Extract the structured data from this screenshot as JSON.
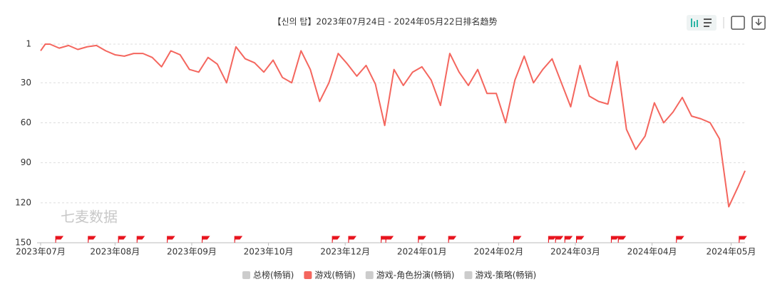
{
  "chart_data": {
    "type": "line",
    "title": "【신의 탑】2023年07月24日 - 2024年05月22日排名趋势",
    "watermark": "七麦数据",
    "x": [
      0,
      2,
      4,
      8,
      12,
      16,
      20,
      24,
      28,
      32,
      36,
      40,
      44,
      48,
      52,
      56,
      60,
      64,
      68,
      72,
      76,
      80,
      84,
      88,
      92,
      96,
      100,
      104,
      108,
      112,
      116,
      120,
      124,
      128,
      132,
      136,
      140,
      144,
      148,
      152,
      156,
      160,
      164,
      168,
      172,
      176,
      180,
      184,
      188,
      192,
      196,
      200,
      204,
      208,
      212,
      216,
      220,
      224,
      228,
      232,
      236,
      240,
      244,
      248,
      252,
      256,
      260,
      264,
      268,
      272,
      276,
      280,
      284,
      288,
      292,
      296,
      300,
      303
    ],
    "series": [
      {
        "name": "游戏(畅销)",
        "color": "#f4665e",
        "values": [
          6,
          1,
          1,
          4,
          2,
          5,
          3,
          2,
          6,
          9,
          10,
          8,
          8,
          11,
          18,
          6,
          9,
          20,
          22,
          11,
          16,
          30,
          3,
          12,
          15,
          22,
          13,
          26,
          30,
          6,
          20,
          44,
          30,
          8,
          16,
          25,
          17,
          31,
          62,
          20,
          32,
          22,
          18,
          28,
          47,
          8,
          22,
          32,
          20,
          38,
          38,
          60,
          28,
          10,
          30,
          20,
          12,
          30,
          48,
          17,
          40,
          44,
          46,
          14,
          65,
          80,
          70,
          45,
          60,
          52,
          41,
          55,
          57,
          60,
          72,
          123,
          108,
          96
        ]
      }
    ],
    "legend": [
      {
        "name": "总榜(畅销)",
        "color": "#ccc"
      },
      {
        "name": "游戏(畅销)",
        "color": "#f4665e"
      },
      {
        "name": "游戏-角色扮演(畅销)",
        "color": "#ccc"
      },
      {
        "name": "游戏-策略(畅销)",
        "color": "#ccc"
      }
    ],
    "events": [
      8,
      22,
      35,
      43,
      56,
      71,
      85,
      127,
      134,
      148,
      150,
      164,
      177,
      205,
      220,
      223,
      227,
      232,
      247,
      250,
      275,
      302
    ],
    "event_color": "#e8141e",
    "xlim": [
      0,
      303
    ],
    "xticks": [
      {
        "value": 0,
        "label": "2023年07月"
      },
      {
        "value": 32,
        "label": "2023年08月"
      },
      {
        "value": 65,
        "label": "2023年09月"
      },
      {
        "value": 98,
        "label": "2023年10月"
      },
      {
        "value": 131,
        "label": "2023年12月"
      },
      {
        "value": 164,
        "label": "2024年01月"
      },
      {
        "value": 197,
        "label": "2024年02月"
      },
      {
        "value": 230,
        "label": "2024年03月"
      },
      {
        "value": 263,
        "label": "2024年04月"
      },
      {
        "value": 297,
        "label": "2024年05月"
      }
    ],
    "ylim": [
      1,
      150
    ],
    "yticks": [
      1,
      30,
      60,
      90,
      120,
      150
    ],
    "y_inverted": true,
    "grid": true
  }
}
